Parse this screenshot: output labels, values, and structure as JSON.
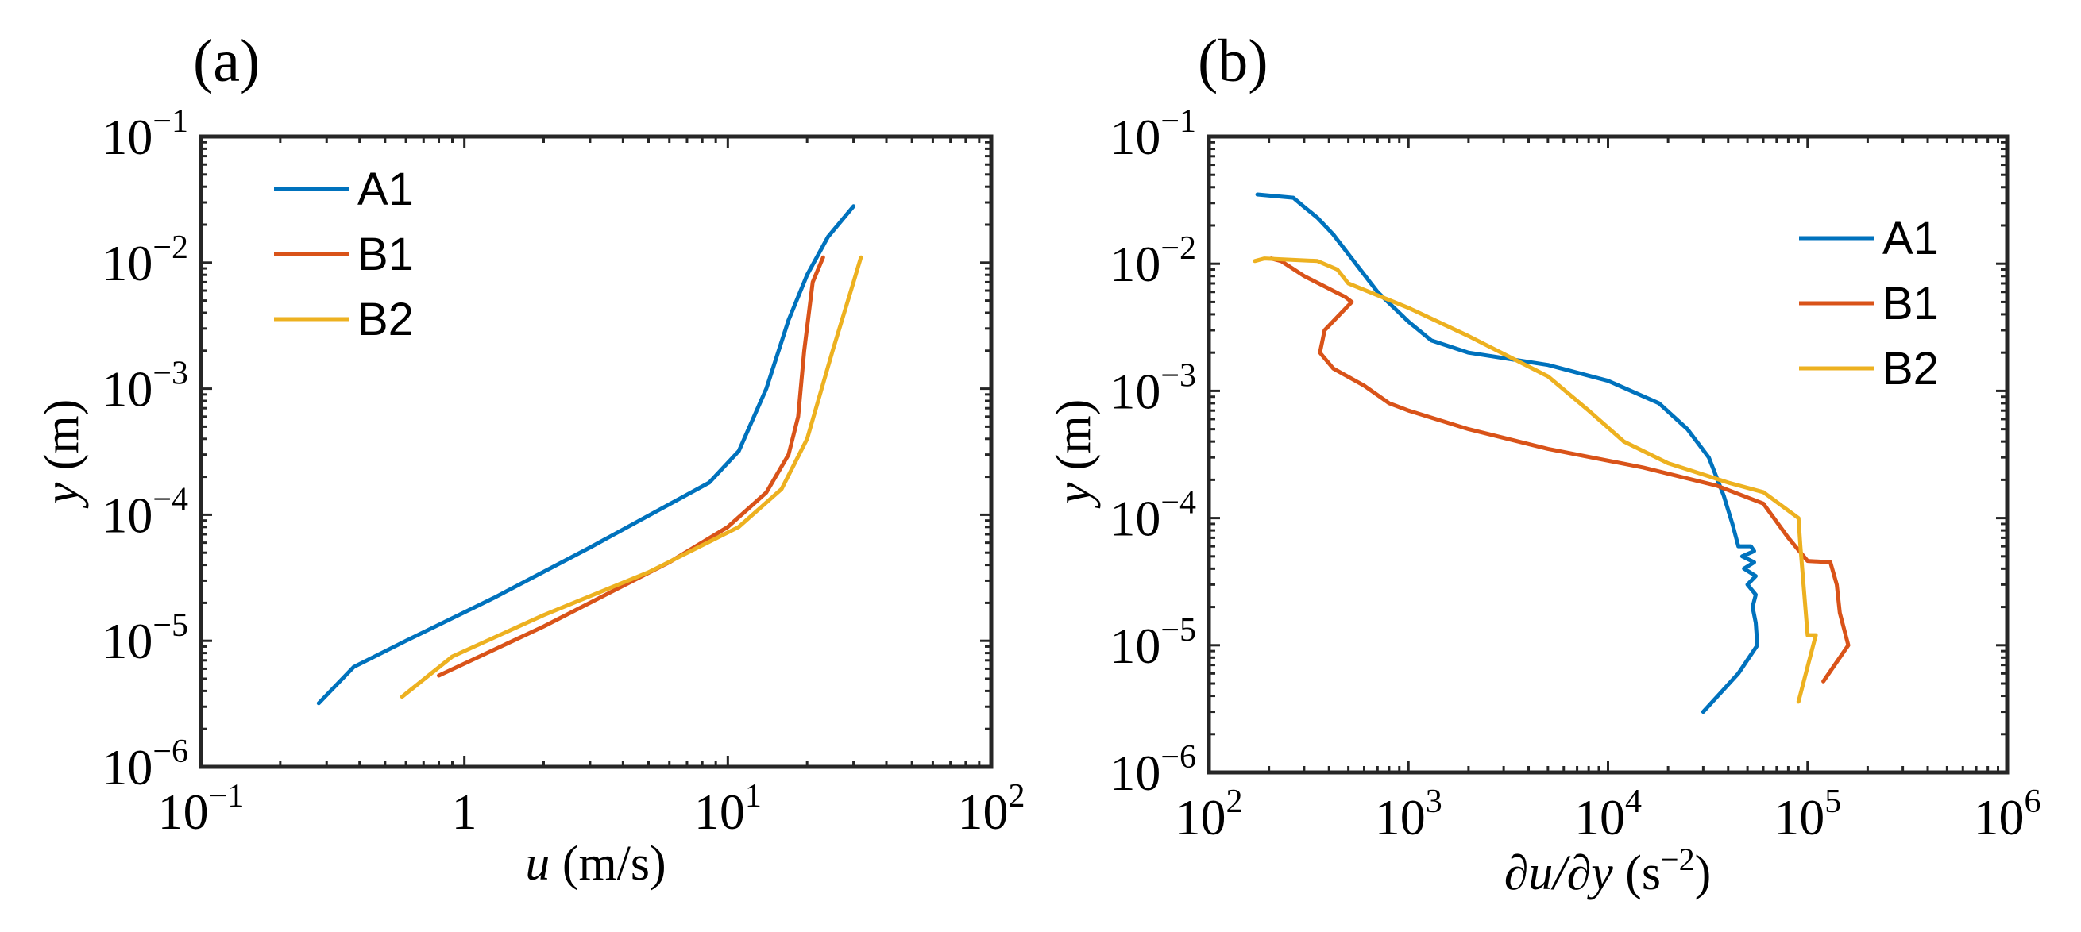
{
  "chart_data": [
    {
      "type": "line",
      "panel_label": "(a)",
      "xlabel_var": "u",
      "xlabel_unit": " (m/s)",
      "ylabel_var": "y",
      "ylabel_unit": " (m)",
      "xscale": "log",
      "yscale": "log",
      "xlim": [
        0.1,
        100
      ],
      "ylim": [
        1e-06,
        0.1
      ],
      "xticks": [
        {
          "value": 0.1,
          "base": "10",
          "exp": "−1"
        },
        {
          "value": 1,
          "base": "1",
          "exp": ""
        },
        {
          "value": 10,
          "base": "10",
          "exp": "1"
        },
        {
          "value": 100,
          "base": "10",
          "exp": "2"
        }
      ],
      "yticks": [
        {
          "value": 1e-06,
          "base": "10",
          "exp": "−6"
        },
        {
          "value": 1e-05,
          "base": "10",
          "exp": "−5"
        },
        {
          "value": 0.0001,
          "base": "10",
          "exp": "−4"
        },
        {
          "value": 0.001,
          "base": "10",
          "exp": "−3"
        },
        {
          "value": 0.01,
          "base": "10",
          "exp": "−2"
        },
        {
          "value": 0.1,
          "base": "10",
          "exp": "−1"
        }
      ],
      "legend_position": "top-left",
      "series": [
        {
          "name": "A1",
          "color": "#0072BD",
          "points": [
            [
              0.28,
              3.2e-06
            ],
            [
              0.38,
              6.2e-06
            ],
            [
              0.6,
              1e-05
            ],
            [
              1.3,
              2.2e-05
            ],
            [
              3,
              5.5e-05
            ],
            [
              8.5,
              0.00018
            ],
            [
              11,
              0.00032
            ],
            [
              14,
              0.001
            ],
            [
              17,
              0.0035
            ],
            [
              20,
              0.008
            ],
            [
              24,
              0.016
            ],
            [
              30,
              0.028
            ]
          ]
        },
        {
          "name": "B1",
          "color": "#D95319",
          "points": [
            [
              0.8,
              5.3e-06
            ],
            [
              2,
              1.3e-05
            ],
            [
              6,
              4.2e-05
            ],
            [
              10,
              8e-05
            ],
            [
              14,
              0.00015
            ],
            [
              17,
              0.0003
            ],
            [
              18.5,
              0.0006
            ],
            [
              19.5,
              0.002
            ],
            [
              21,
              0.007
            ],
            [
              23,
              0.011
            ]
          ]
        },
        {
          "name": "B2",
          "color": "#EDB120",
          "points": [
            [
              0.58,
              3.6e-06
            ],
            [
              0.9,
              7.5e-06
            ],
            [
              2,
              1.6e-05
            ],
            [
              5,
              3.5e-05
            ],
            [
              11,
              8e-05
            ],
            [
              16,
              0.00016
            ],
            [
              20,
              0.0004
            ],
            [
              25,
              0.002
            ],
            [
              30,
              0.007
            ],
            [
              32,
              0.011
            ]
          ]
        }
      ]
    },
    {
      "type": "line",
      "panel_label": "(b)",
      "xlabel_var": "∂u/∂y",
      "xlabel_unit": " (s",
      "xlabel_exp": "−2",
      "xlabel_close": ")",
      "ylabel_var": "y",
      "ylabel_unit": " (m)",
      "xscale": "log",
      "yscale": "log",
      "xlim": [
        100,
        1000000
      ],
      "ylim": [
        1e-06,
        0.1
      ],
      "xticks": [
        {
          "value": 100,
          "base": "10",
          "exp": "2"
        },
        {
          "value": 1000,
          "base": "10",
          "exp": "3"
        },
        {
          "value": 10000,
          "base": "10",
          "exp": "4"
        },
        {
          "value": 100000,
          "base": "10",
          "exp": "5"
        },
        {
          "value": 1000000,
          "base": "10",
          "exp": "6"
        }
      ],
      "yticks": [
        {
          "value": 1e-06,
          "base": "10",
          "exp": "−6"
        },
        {
          "value": 1e-05,
          "base": "10",
          "exp": "−5"
        },
        {
          "value": 0.0001,
          "base": "10",
          "exp": "−4"
        },
        {
          "value": 0.001,
          "base": "10",
          "exp": "−3"
        },
        {
          "value": 0.01,
          "base": "10",
          "exp": "−2"
        },
        {
          "value": 0.1,
          "base": "10",
          "exp": "−1"
        }
      ],
      "legend_position": "top-right",
      "series": [
        {
          "name": "A1",
          "color": "#0072BD",
          "points": [
            [
              175,
              0.035
            ],
            [
              265,
              0.033
            ],
            [
              300,
              0.028
            ],
            [
              350,
              0.023
            ],
            [
              420,
              0.017
            ],
            [
              520,
              0.011
            ],
            [
              700,
              0.006
            ],
            [
              1000,
              0.0035
            ],
            [
              1300,
              0.0025
            ],
            [
              2000,
              0.002
            ],
            [
              5000,
              0.0016
            ],
            [
              10000,
              0.0012
            ],
            [
              18000,
              0.0008
            ],
            [
              25000,
              0.0005
            ],
            [
              32000,
              0.0003
            ],
            [
              38000,
              0.00015
            ],
            [
              42000,
              9e-05
            ],
            [
              45000,
              6e-05
            ],
            [
              52000,
              6e-05
            ],
            [
              54000,
              5.5e-05
            ],
            [
              47000,
              5e-05
            ],
            [
              54000,
              4.5e-05
            ],
            [
              48000,
              4e-05
            ],
            [
              55000,
              3.5e-05
            ],
            [
              50000,
              3e-05
            ],
            [
              55000,
              2.5e-05
            ],
            [
              53000,
              2e-05
            ],
            [
              55000,
              1.5e-05
            ],
            [
              56000,
              1e-05
            ],
            [
              45000,
              6e-06
            ],
            [
              30000,
              3e-06
            ]
          ]
        },
        {
          "name": "B1",
          "color": "#D95319",
          "points": [
            [
              205,
              0.011
            ],
            [
              230,
              0.0105
            ],
            [
              300,
              0.008
            ],
            [
              480,
              0.0055
            ],
            [
              520,
              0.005
            ],
            [
              380,
              0.003
            ],
            [
              360,
              0.002
            ],
            [
              420,
              0.0015
            ],
            [
              600,
              0.0011
            ],
            [
              800,
              0.0008
            ],
            [
              1000,
              0.0007
            ],
            [
              2000,
              0.0005
            ],
            [
              5000,
              0.00035
            ],
            [
              15000,
              0.00025
            ],
            [
              35000,
              0.00018
            ],
            [
              60000,
              0.00013
            ],
            [
              80000,
              7e-05
            ],
            [
              100000,
              4.6e-05
            ],
            [
              130000,
              4.5e-05
            ],
            [
              140000,
              3e-05
            ],
            [
              145000,
              1.8e-05
            ],
            [
              160000,
              1e-05
            ],
            [
              120000,
              5.2e-06
            ]
          ]
        },
        {
          "name": "B2",
          "color": "#EDB120",
          "points": [
            [
              170,
              0.0105
            ],
            [
              190,
              0.011
            ],
            [
              350,
              0.0105
            ],
            [
              440,
              0.009
            ],
            [
              500,
              0.007
            ],
            [
              1000,
              0.0045
            ],
            [
              2000,
              0.0027
            ],
            [
              5000,
              0.0013
            ],
            [
              8000,
              0.0007
            ],
            [
              12000,
              0.0004
            ],
            [
              20000,
              0.00027
            ],
            [
              40000,
              0.00019
            ],
            [
              60000,
              0.00016
            ],
            [
              90000,
              0.0001
            ],
            [
              92000,
              6e-05
            ],
            [
              100000,
              1.2e-05
            ],
            [
              110000,
              1.2e-05
            ],
            [
              90000,
              3.6e-06
            ]
          ]
        }
      ]
    }
  ]
}
